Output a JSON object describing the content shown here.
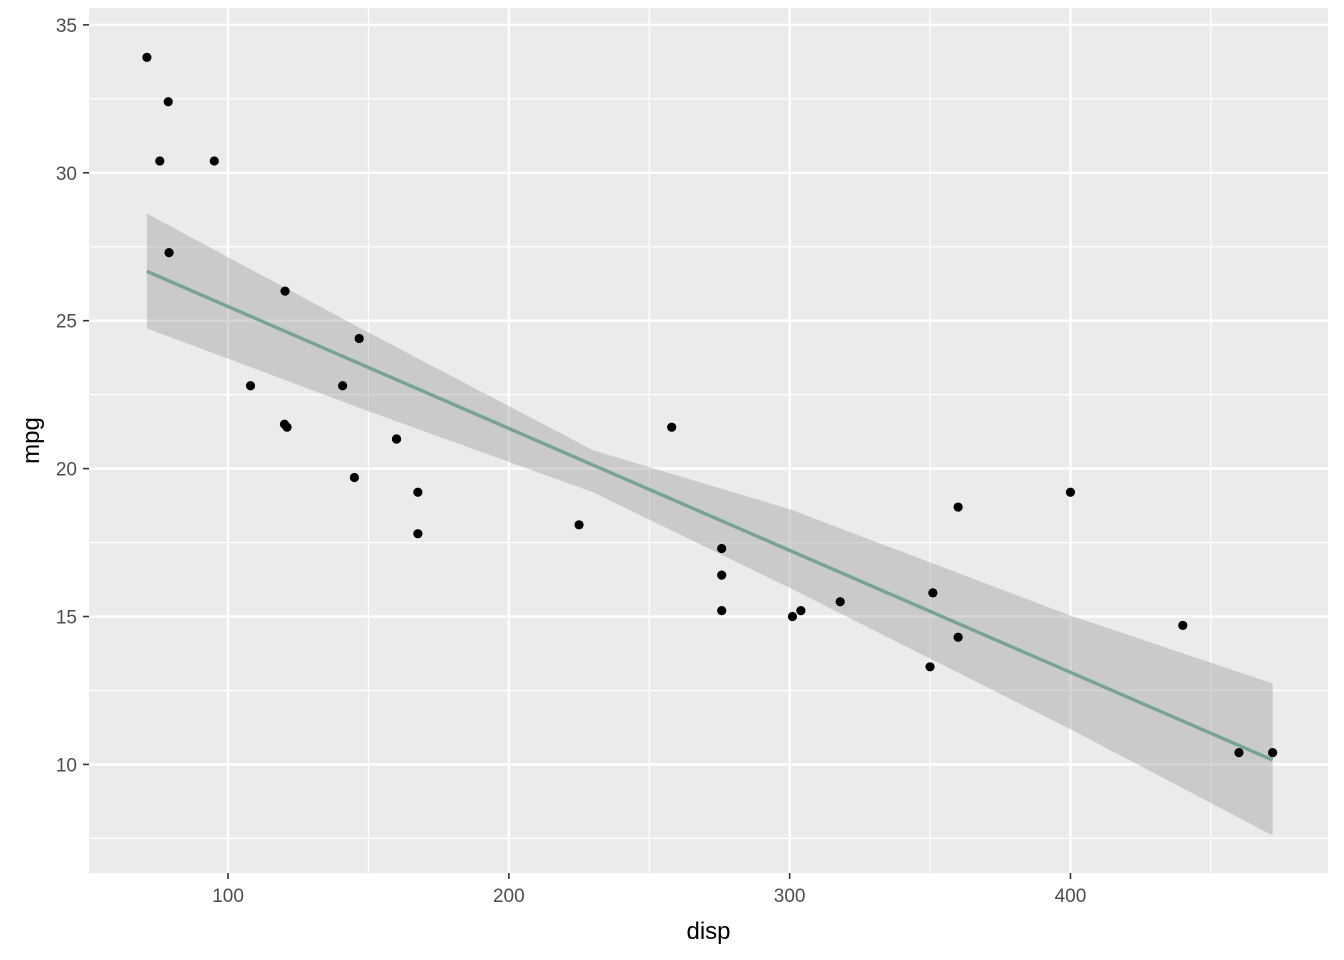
{
  "chart_data": {
    "type": "scatter",
    "xlabel": "disp",
    "ylabel": "mpg",
    "xlim": [
      50.48,
      491.72
    ],
    "ylim": [
      6.33,
      35.57
    ],
    "x_ticks": [
      100,
      200,
      300,
      400
    ],
    "y_ticks": [
      10,
      15,
      20,
      25,
      30,
      35
    ],
    "x_minor_ticks": [
      150,
      250,
      350,
      450
    ],
    "y_minor_ticks": [
      7.5,
      12.5,
      17.5,
      22.5,
      27.5,
      32.5
    ],
    "x_tick_labels": [
      "100",
      "200",
      "300",
      "400"
    ],
    "y_tick_labels": [
      "10",
      "15",
      "20",
      "25",
      "30",
      "35"
    ],
    "grid": true,
    "background": "#ebebeb",
    "point_color": "#000000",
    "points": [
      {
        "x": 160,
        "y": 21.0
      },
      {
        "x": 160,
        "y": 21.0
      },
      {
        "x": 108,
        "y": 22.8
      },
      {
        "x": 258,
        "y": 21.4
      },
      {
        "x": 360,
        "y": 18.7
      },
      {
        "x": 225,
        "y": 18.1
      },
      {
        "x": 360,
        "y": 14.3
      },
      {
        "x": 146.7,
        "y": 24.4
      },
      {
        "x": 140.8,
        "y": 22.8
      },
      {
        "x": 167.6,
        "y": 19.2
      },
      {
        "x": 167.6,
        "y": 17.8
      },
      {
        "x": 275.8,
        "y": 16.4
      },
      {
        "x": 275.8,
        "y": 17.3
      },
      {
        "x": 275.8,
        "y": 15.2
      },
      {
        "x": 472,
        "y": 10.4
      },
      {
        "x": 460,
        "y": 10.4
      },
      {
        "x": 440,
        "y": 14.7
      },
      {
        "x": 78.7,
        "y": 32.4
      },
      {
        "x": 75.7,
        "y": 30.4
      },
      {
        "x": 71.1,
        "y": 33.9
      },
      {
        "x": 120.1,
        "y": 21.5
      },
      {
        "x": 318,
        "y": 15.5
      },
      {
        "x": 304,
        "y": 15.2
      },
      {
        "x": 350,
        "y": 13.3
      },
      {
        "x": 400,
        "y": 19.2
      },
      {
        "x": 79,
        "y": 27.3
      },
      {
        "x": 120.3,
        "y": 26.0
      },
      {
        "x": 95.1,
        "y": 30.4
      },
      {
        "x": 351,
        "y": 15.8
      },
      {
        "x": 145,
        "y": 19.7
      },
      {
        "x": 301,
        "y": 15.0
      },
      {
        "x": 121,
        "y": 21.4
      }
    ],
    "fit": {
      "method": "lm",
      "intercept": 29.5999,
      "slope": -0.041215,
      "x_range": [
        71.1,
        472
      ],
      "color": "#76a394",
      "band_color": "#999999",
      "band_opacity": 0.4,
      "confidence_band": [
        {
          "x": 71.1,
          "lower": 24.74,
          "upper": 28.62
        },
        {
          "x": 150,
          "lower": 21.94,
          "upper": 24.6
        },
        {
          "x": 230,
          "lower": 19.2,
          "upper": 20.62
        },
        {
          "x": 300,
          "lower": 15.97,
          "upper": 18.63
        },
        {
          "x": 400,
          "lower": 11.19,
          "upper": 15.03
        },
        {
          "x": 472,
          "lower": 7.6,
          "upper": 12.74
        }
      ]
    }
  }
}
